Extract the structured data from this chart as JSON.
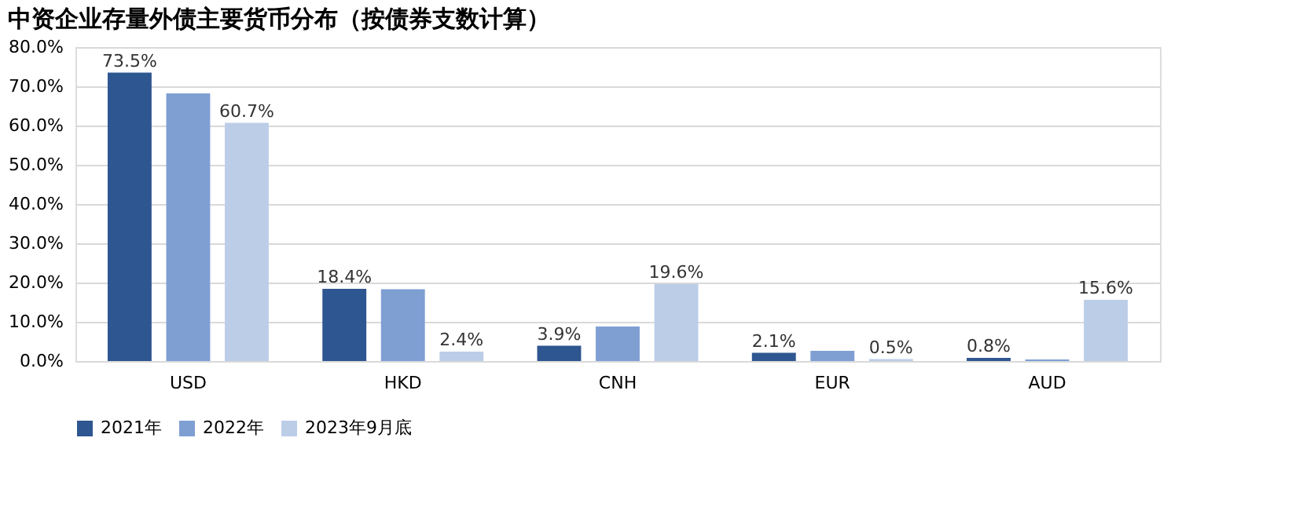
{
  "chart_data": {
    "type": "bar",
    "title": "中资企业存量外债主要货币分布（按债券支数计算）",
    "categories": [
      "USD",
      "HKD",
      "CNH",
      "EUR",
      "AUD"
    ],
    "series": [
      {
        "name": "2021年",
        "color": "#2e5690",
        "values": [
          73.5,
          18.4,
          3.9,
          2.1,
          0.8
        ],
        "value_labels": [
          "73.5%",
          "18.4%",
          "3.9%",
          "2.1%",
          "0.8%"
        ]
      },
      {
        "name": "2022年",
        "color": "#7f9fd3",
        "values": [
          68.2,
          18.3,
          8.8,
          2.6,
          0.4
        ],
        "value_labels": [
          null,
          null,
          null,
          null,
          null
        ]
      },
      {
        "name": "2023年9月底",
        "color": "#bccde8",
        "values": [
          60.7,
          2.4,
          19.6,
          0.5,
          15.6
        ],
        "value_labels": [
          "60.7%",
          "2.4%",
          "19.6%",
          "0.5%",
          "15.6%"
        ]
      }
    ],
    "ylim": [
      0,
      80
    ],
    "yticks": [
      {
        "value": 0,
        "label": "0.0%"
      },
      {
        "value": 10,
        "label": "10.0%"
      },
      {
        "value": 20,
        "label": "20.0%"
      },
      {
        "value": 30,
        "label": "30.0%"
      },
      {
        "value": 40,
        "label": "40.0%"
      },
      {
        "value": 50,
        "label": "50.0%"
      },
      {
        "value": 60,
        "label": "60.0%"
      },
      {
        "value": 70,
        "label": "70.0%"
      },
      {
        "value": 80,
        "label": "80.0%"
      }
    ],
    "grid": "y",
    "legend": "bottom"
  }
}
